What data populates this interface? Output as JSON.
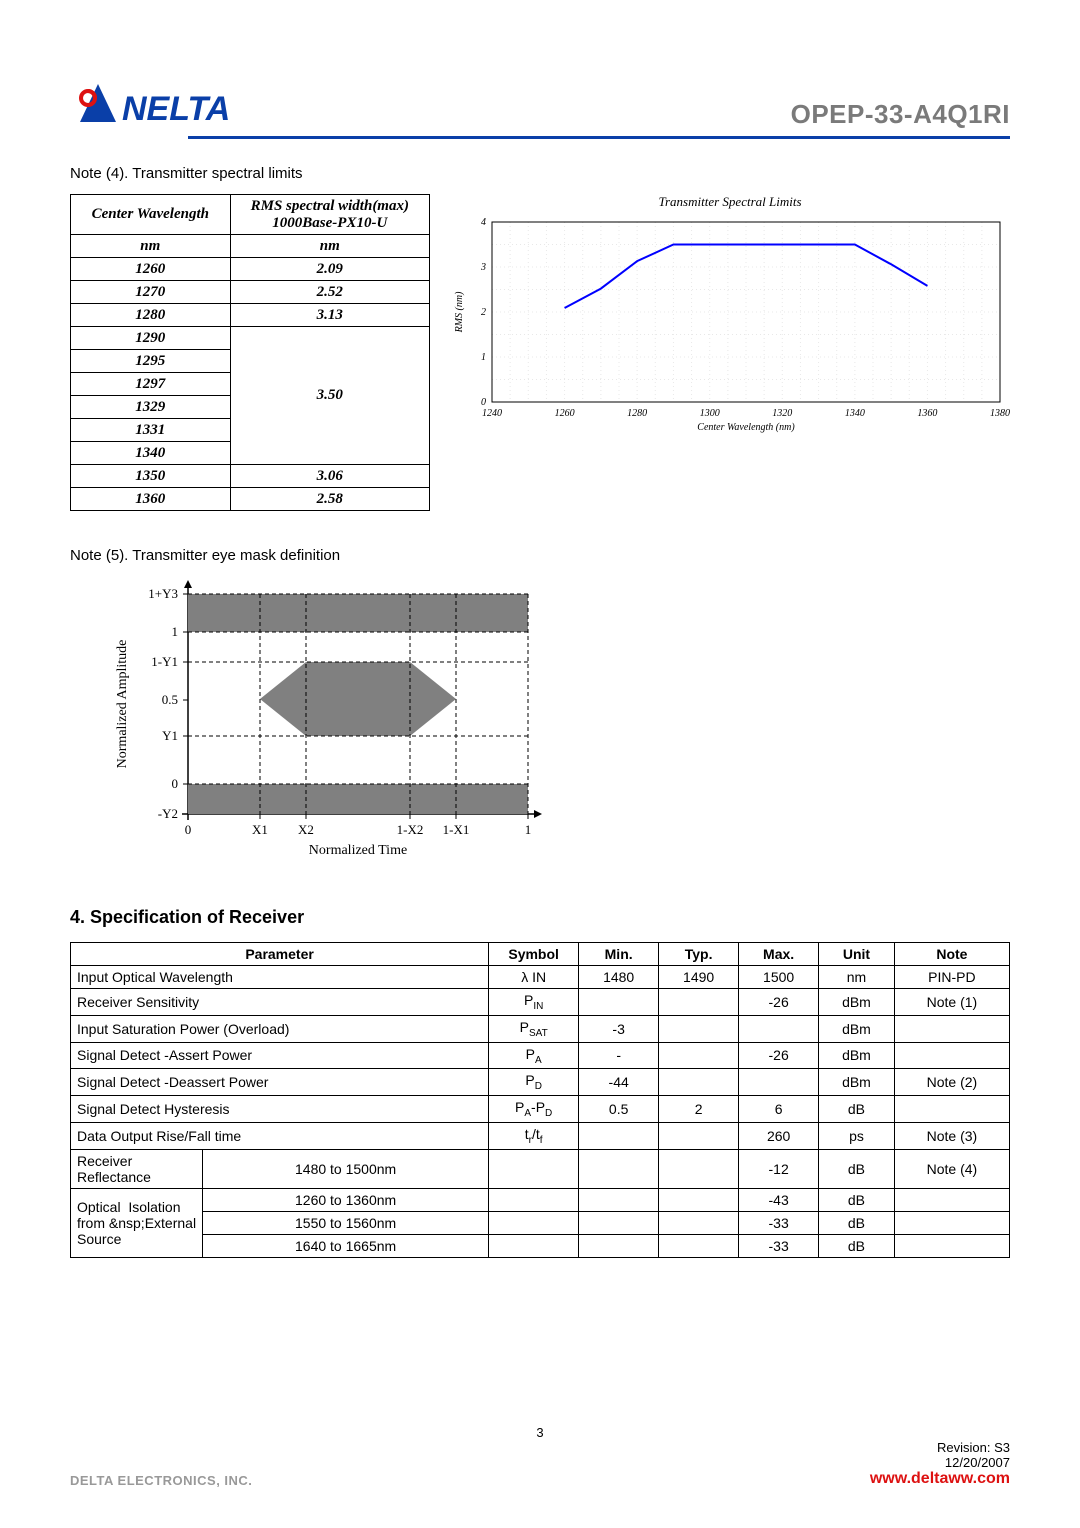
{
  "header": {
    "product_code": "OPEP-33-A4Q1RI",
    "logo_brand": "NELTA",
    "logo_color_primary": "#0a3fa8",
    "logo_color_accent": "#d11"
  },
  "note4": {
    "title": "Note (4). Transmitter spectral limits",
    "table": {
      "col_headers": [
        "Center Wavelength",
        "RMS spectral width(max) 1000Base-PX10-U"
      ],
      "unit_row": [
        "nm",
        "nm"
      ],
      "rows": [
        {
          "wl": "1260",
          "rms": "2.09"
        },
        {
          "wl": "1270",
          "rms": "2.52"
        },
        {
          "wl": "1280",
          "rms": "3.13"
        },
        {
          "wl": "1290",
          "rms": "3.50",
          "span": 6
        },
        {
          "wl": "1295"
        },
        {
          "wl": "1297"
        },
        {
          "wl": "1329"
        },
        {
          "wl": "1331"
        },
        {
          "wl": "1340"
        },
        {
          "wl": "1350",
          "rms": "3.06"
        },
        {
          "wl": "1360",
          "rms": "2.58"
        }
      ]
    },
    "chart": {
      "title": "Transmitter Spectral Limits",
      "xlabel": "Center Wavelength (nm)",
      "ylabel": "RMS (nm)",
      "xlim": [
        1240,
        1380
      ],
      "xtick_step": 20,
      "ylim": [
        0,
        4
      ],
      "ytick_step": 1,
      "line_color": "#0000ff",
      "grid_color": "#e8e8e8",
      "border_color": "#000000",
      "points": [
        [
          1260,
          2.09
        ],
        [
          1270,
          2.52
        ],
        [
          1280,
          3.13
        ],
        [
          1290,
          3.5
        ],
        [
          1340,
          3.5
        ],
        [
          1350,
          3.06
        ],
        [
          1360,
          2.58
        ]
      ]
    }
  },
  "note5": {
    "title": "Note (5). Transmitter eye mask definition",
    "ylabel": "Normalized Amplitude",
    "xlabel": "Normalized Time",
    "y_ticks": [
      "1+Y3",
      "1",
      "1-Y1",
      "0.5",
      "Y1",
      "0",
      "-Y2"
    ],
    "x_ticks": [
      "0",
      "X1",
      "X2",
      "1-X2",
      "1-X1",
      "1"
    ],
    "mask_fill": "#808080",
    "axis_color": "#000000",
    "grid_dash": "4 3"
  },
  "section4": {
    "heading": "4. Specification of Receiver",
    "headers": [
      "Parameter",
      "Symbol",
      "Min.",
      "Typ.",
      "Max.",
      "Unit",
      "Note"
    ],
    "col_align": [
      "left",
      "center",
      "center",
      "center",
      "center",
      "center",
      "center"
    ],
    "rows": [
      {
        "param": "Input Optical Wavelength",
        "sym": "λ IN",
        "min": "1480",
        "typ": "1490",
        "max": "1500",
        "unit": "nm",
        "note": "PIN-PD"
      },
      {
        "param": "Receiver Sensitivity",
        "sym": "P|IN",
        "min": "",
        "typ": "",
        "max": "-26",
        "unit": "dBm",
        "note": "Note (1)"
      },
      {
        "param": "Input Saturation Power (Overload)",
        "sym": "P|SAT",
        "min": "-3",
        "typ": "",
        "max": "",
        "unit": "dBm",
        "note": ""
      },
      {
        "param": "Signal Detect -Assert Power",
        "sym": "P|A",
        "min": "-",
        "typ": "",
        "max": "-26",
        "unit": "dBm",
        "note": ""
      },
      {
        "param": "Signal Detect -Deassert Power",
        "sym": "P|D",
        "min": "-44",
        "typ": "",
        "max": "",
        "unit": "dBm",
        "note": "Note (2)"
      },
      {
        "param": "Signal Detect Hysteresis",
        "sym": "P|A-P|D",
        "min": "0.5",
        "typ": "2",
        "max": "6",
        "unit": "dB",
        "note": ""
      },
      {
        "param": "Data Output Rise/Fall time",
        "sym": "t|r/t|f",
        "min": "",
        "typ": "",
        "max": "260",
        "unit": "ps",
        "note": "Note (3)"
      },
      {
        "param": "Receiver Reflectance",
        "sub": "1480 to 1500nm",
        "sym": "",
        "min": "",
        "typ": "",
        "max": "-12",
        "unit": "dB",
        "note": "Note (4)"
      },
      {
        "param_group": "Optical Isolation from External Source",
        "sub": "1260 to 1360nm",
        "sym": "",
        "min": "",
        "typ": "",
        "max": "-43",
        "unit": "dB",
        "note": "",
        "group_span": 3
      },
      {
        "sub": "1550 to 1560nm",
        "sym": "",
        "min": "",
        "typ": "",
        "max": "-33",
        "unit": "dB",
        "note": ""
      },
      {
        "sub": "1640 to 1665nm",
        "sym": "",
        "min": "",
        "typ": "",
        "max": "-33",
        "unit": "dB",
        "note": ""
      }
    ]
  },
  "footer": {
    "page": "3",
    "revision": "Revision:  S3",
    "date": "12/20/2007",
    "company": "DELTA ELECTRONICS, INC.",
    "url": "www.deltaww.com"
  }
}
